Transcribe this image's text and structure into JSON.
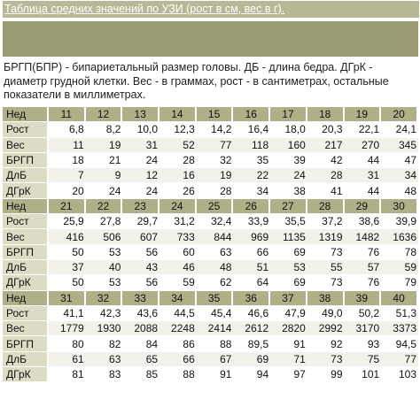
{
  "title": "Таблица средних значений по УЗИ (рост в см, вес в г).",
  "description": "БРГП(БПР) - бипариетальный размер головы. ДБ - длина бедра. ДГрК - диаметр грудной клетки. Вес - в граммах, рост - в сантиметрах, остальные показатели в миллиметрах.",
  "blocks": [
    {
      "header": "Нед",
      "weeks": [
        "11",
        "12",
        "13",
        "14",
        "15",
        "16",
        "17",
        "18",
        "19",
        "20"
      ],
      "rows": [
        {
          "label": "Рост",
          "values": [
            "6,8",
            "8,2",
            "10,0",
            "12,3",
            "14,2",
            "16,4",
            "18,0",
            "20,3",
            "22,1",
            "24,1"
          ]
        },
        {
          "label": "Вес",
          "values": [
            "11",
            "19",
            "31",
            "52",
            "77",
            "118",
            "160",
            "217",
            "270",
            "345"
          ]
        },
        {
          "label": "БРГП",
          "values": [
            "18",
            "21",
            "24",
            "28",
            "32",
            "35",
            "39",
            "42",
            "44",
            "47"
          ]
        },
        {
          "label": "ДлБ",
          "values": [
            "7",
            "9",
            "12",
            "16",
            "19",
            "22",
            "24",
            "28",
            "31",
            "34"
          ]
        },
        {
          "label": "ДГрК",
          "values": [
            "20",
            "24",
            "24",
            "26",
            "28",
            "34",
            "38",
            "41",
            "44",
            "48"
          ]
        }
      ]
    },
    {
      "header": "Нед",
      "weeks": [
        "21",
        "22",
        "23",
        "24",
        "25",
        "26",
        "27",
        "28",
        "29",
        "30"
      ],
      "rows": [
        {
          "label": "Рост",
          "values": [
            "25,9",
            "27,8",
            "29,7",
            "31,2",
            "32,4",
            "33,9",
            "35,5",
            "37,2",
            "38,6",
            "39,9"
          ]
        },
        {
          "label": "Вес",
          "values": [
            "416",
            "506",
            "607",
            "733",
            "844",
            "969",
            "1135",
            "1319",
            "1482",
            "1636"
          ]
        },
        {
          "label": "БРГП",
          "values": [
            "50",
            "53",
            "56",
            "60",
            "63",
            "66",
            "69",
            "73",
            "76",
            "78"
          ]
        },
        {
          "label": "ДлБ",
          "values": [
            "37",
            "40",
            "43",
            "46",
            "48",
            "51",
            "53",
            "55",
            "57",
            "59"
          ]
        },
        {
          "label": "ДГрК",
          "values": [
            "50",
            "53",
            "56",
            "59",
            "62",
            "64",
            "69",
            "73",
            "76",
            "79"
          ]
        }
      ]
    },
    {
      "header": "Нед",
      "weeks": [
        "31",
        "32",
        "33",
        "34",
        "35",
        "36",
        "37",
        "38",
        "39",
        "40"
      ],
      "rows": [
        {
          "label": "Рост",
          "values": [
            "41,1",
            "42,3",
            "43,6",
            "44,5",
            "45,4",
            "46,6",
            "47,9",
            "49,0",
            "50,2",
            "51,3"
          ]
        },
        {
          "label": "Вес",
          "values": [
            "1779",
            "1930",
            "2088",
            "2248",
            "2414",
            "2612",
            "2820",
            "2992",
            "3170",
            "3373"
          ]
        },
        {
          "label": "БРГП",
          "values": [
            "80",
            "82",
            "84",
            "86",
            "88",
            "89,5",
            "91",
            "92",
            "93",
            "94,5"
          ]
        },
        {
          "label": "ДлБ",
          "values": [
            "61",
            "63",
            "65",
            "66",
            "67",
            "69",
            "71",
            "73",
            "75",
            "77"
          ]
        },
        {
          "label": "ДГрК",
          "values": [
            "81",
            "83",
            "85",
            "88",
            "91",
            "94",
            "97",
            "99",
            "101",
            "103"
          ]
        }
      ]
    }
  ]
}
